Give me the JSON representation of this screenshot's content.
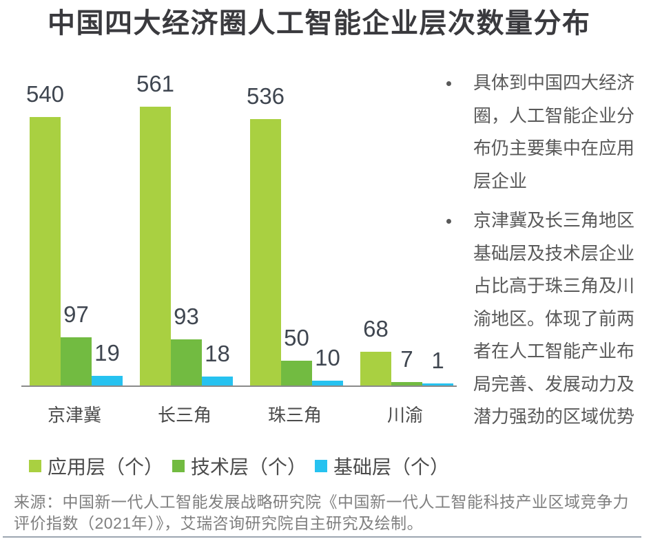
{
  "title": "中国四大经济圈人工智能企业层次数量分布",
  "title_color": "#3A3A3E",
  "chart_data": {
    "type": "bar",
    "title": "中国四大经济圈人工智能企业层次数量分布",
    "categories": [
      "京津冀",
      "长三角",
      "珠三角",
      "川渝"
    ],
    "series": [
      {
        "id": "app",
        "name": "应用层（个）",
        "color": "#A9D041",
        "values": [
          540,
          561,
          536,
          68
        ]
      },
      {
        "id": "tech",
        "name": "技术层（个）",
        "color": "#72BB41",
        "values": [
          97,
          93,
          50,
          7
        ]
      },
      {
        "id": "base",
        "name": "基础层（个）",
        "color": "#26C2F0",
        "values": [
          19,
          18,
          10,
          1
        ]
      }
    ],
    "ylim": [
      0,
      600
    ],
    "grid": false,
    "value_labels": true,
    "legend_position": "bottom",
    "axis_color": "#8A8A8A",
    "value_label_color": "#3F4650",
    "category_label_color": "#4B4B4B"
  },
  "insights": {
    "bullets": [
      "具体到中国四大经济\n圈，人工智能企业分\n布仍主要集中在应用\n层企业",
      "京津冀及长三角地区\n基础层及技术层企业\n占比高于珠三角及川\n渝地区。体现了前两\n者在人工智能产业布\n局完善、发展动力及\n潜力强劲的区域优势"
    ],
    "text_color": "#595959"
  },
  "source_note": "来源：中国新一代人工智能发展战略研究院《中国新一代人工智能科技产业区域竞争力\n评价指数（2021年）》，艾瑞咨询研究院自主研究及绘制。"
}
